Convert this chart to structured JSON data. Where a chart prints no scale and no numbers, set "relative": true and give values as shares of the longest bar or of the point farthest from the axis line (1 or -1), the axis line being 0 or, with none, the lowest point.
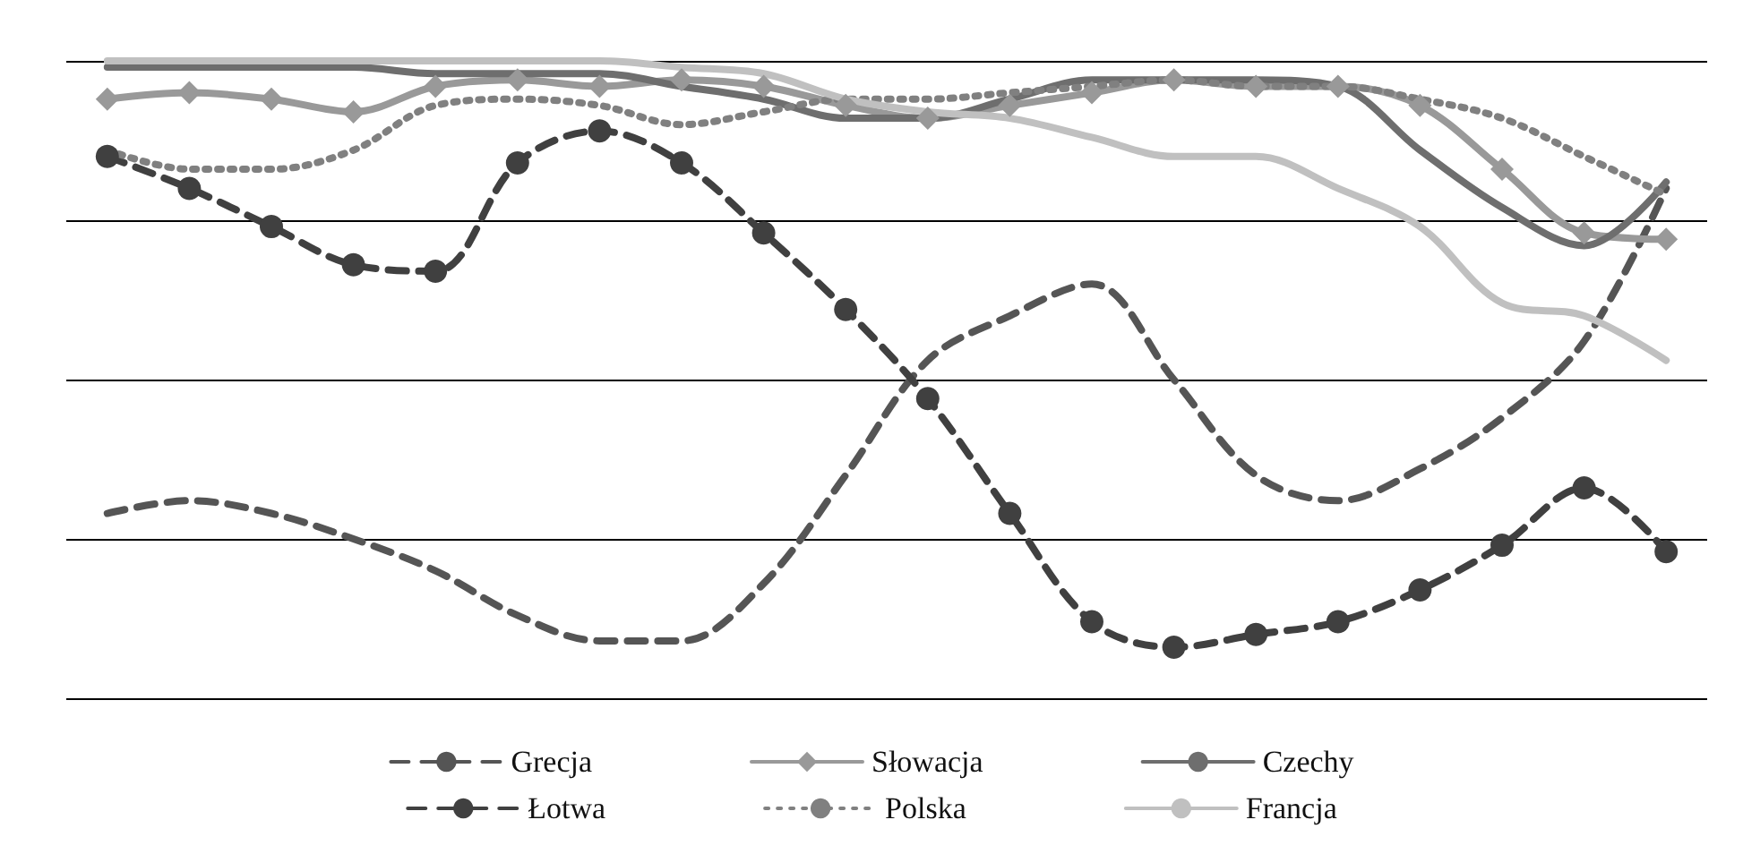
{
  "chart_data": {
    "type": "line",
    "relative": true,
    "grid": "y",
    "legend": "bottom",
    "categories": [
      null,
      null,
      null,
      null,
      null,
      null,
      null,
      null,
      null,
      null,
      null,
      null,
      null,
      null,
      null,
      null,
      null,
      null,
      null,
      null
    ],
    "series": [
      {
        "name": "Grecja",
        "color": "#555555",
        "line_style": "dashed",
        "marker": "none",
        "values": [
          0.29,
          0.31,
          0.29,
          0.25,
          0.2,
          0.13,
          0.09,
          0.09,
          0.18,
          0.35,
          0.53,
          0.6,
          0.65,
          0.5,
          0.35,
          0.31,
          0.36,
          0.44,
          0.56,
          0.8
        ]
      },
      {
        "name": "Słowacja",
        "color": "#999999",
        "line_style": "solid",
        "marker": "diamond",
        "values": [
          0.94,
          0.95,
          0.94,
          0.92,
          0.96,
          0.97,
          0.96,
          0.97,
          0.96,
          0.93,
          0.91,
          0.93,
          0.95,
          0.97,
          0.96,
          0.96,
          0.93,
          0.83,
          0.73,
          0.72
        ]
      },
      {
        "name": "Czechy",
        "color": "#6e6e6e",
        "line_style": "solid",
        "marker": "none",
        "values": [
          0.99,
          0.99,
          0.99,
          0.99,
          0.98,
          0.98,
          0.98,
          0.96,
          0.94,
          0.91,
          0.91,
          0.94,
          0.97,
          0.97,
          0.97,
          0.96,
          0.86,
          0.77,
          0.71,
          0.81
        ]
      },
      {
        "name": "Łotwa",
        "color": "#404040",
        "line_style": "dashed",
        "marker": "circle",
        "values": [
          0.85,
          0.8,
          0.74,
          0.68,
          0.67,
          0.84,
          0.89,
          0.84,
          0.73,
          0.61,
          0.47,
          0.29,
          0.12,
          0.08,
          0.1,
          0.12,
          0.17,
          0.24,
          0.33,
          0.23
        ]
      },
      {
        "name": "Polska",
        "color": "#808080",
        "line_style": "dotted",
        "marker": "none",
        "values": [
          0.86,
          0.83,
          0.83,
          0.86,
          0.93,
          0.94,
          0.93,
          0.9,
          0.92,
          0.94,
          0.94,
          0.95,
          0.96,
          0.97,
          0.96,
          0.96,
          0.94,
          0.91,
          0.85,
          0.79
        ]
      },
      {
        "name": "Francja",
        "color": "#c0c0c0",
        "line_style": "solid",
        "marker": "none",
        "values": [
          1,
          1,
          1,
          1,
          1,
          1,
          1,
          0.99,
          0.98,
          0.94,
          0.92,
          0.91,
          0.88,
          0.85,
          0.85,
          0.8,
          0.74,
          0.62,
          0.6,
          0.53
        ]
      }
    ]
  }
}
